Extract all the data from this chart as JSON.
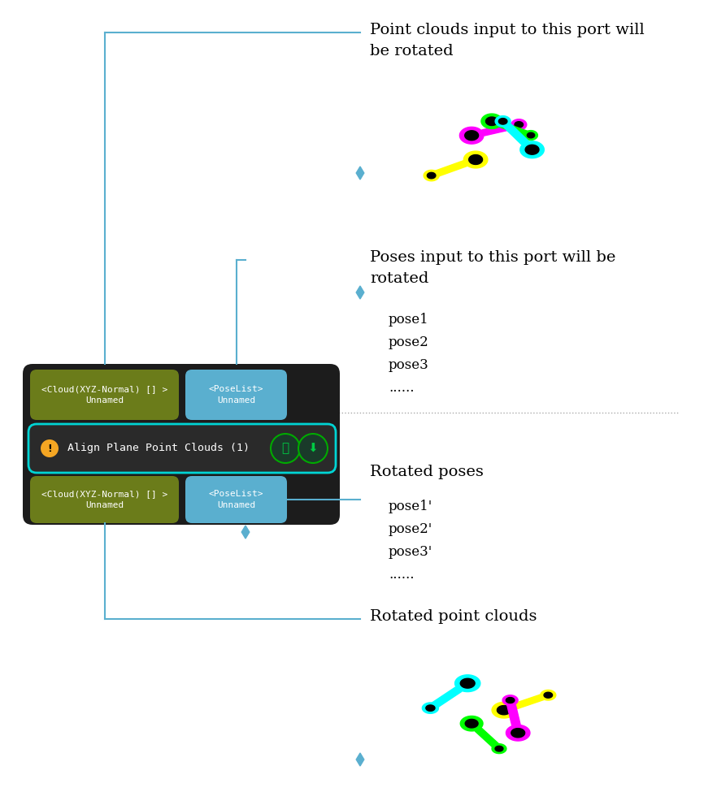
{
  "fig_width": 8.66,
  "fig_height": 9.75,
  "bg_color": "#ffffff",
  "cloud_badge_color": "#6b7c1a",
  "pose_badge_color": "#5aafcf",
  "input_top_cloud_label": "<Cloud(XYZ-Normal) [] >\nUnnamed",
  "input_top_pose_label": "<PoseList>\nUnnamed",
  "input_bot_cloud_label": "<Cloud(XYZ-Normal) [] >\nUnnamed",
  "input_bot_pose_label": "<PoseList>\nUnnamed",
  "title_text": "Align Plane Point Clouds (1)",
  "warning_color": "#f5a623",
  "annotation1_text": "Point clouds input to this port will\nbe rotated",
  "annotation2_text": "Poses input to this port will be\nrotated",
  "annotation3_text": "Rotated poses",
  "annotation4_text": "Rotated point clouds",
  "pose_list1": [
    "pose1",
    "pose2",
    "pose3",
    "......"
  ],
  "pose_list2": [
    "pose1'",
    "pose2'",
    "pose3'",
    "......"
  ],
  "line_color": "#5aafcf",
  "dashed_line_color": "#aaaaaa",
  "annot_font_size": 14,
  "badge_font_size": 8,
  "title_font_size": 9.5,
  "list_font_size": 12
}
